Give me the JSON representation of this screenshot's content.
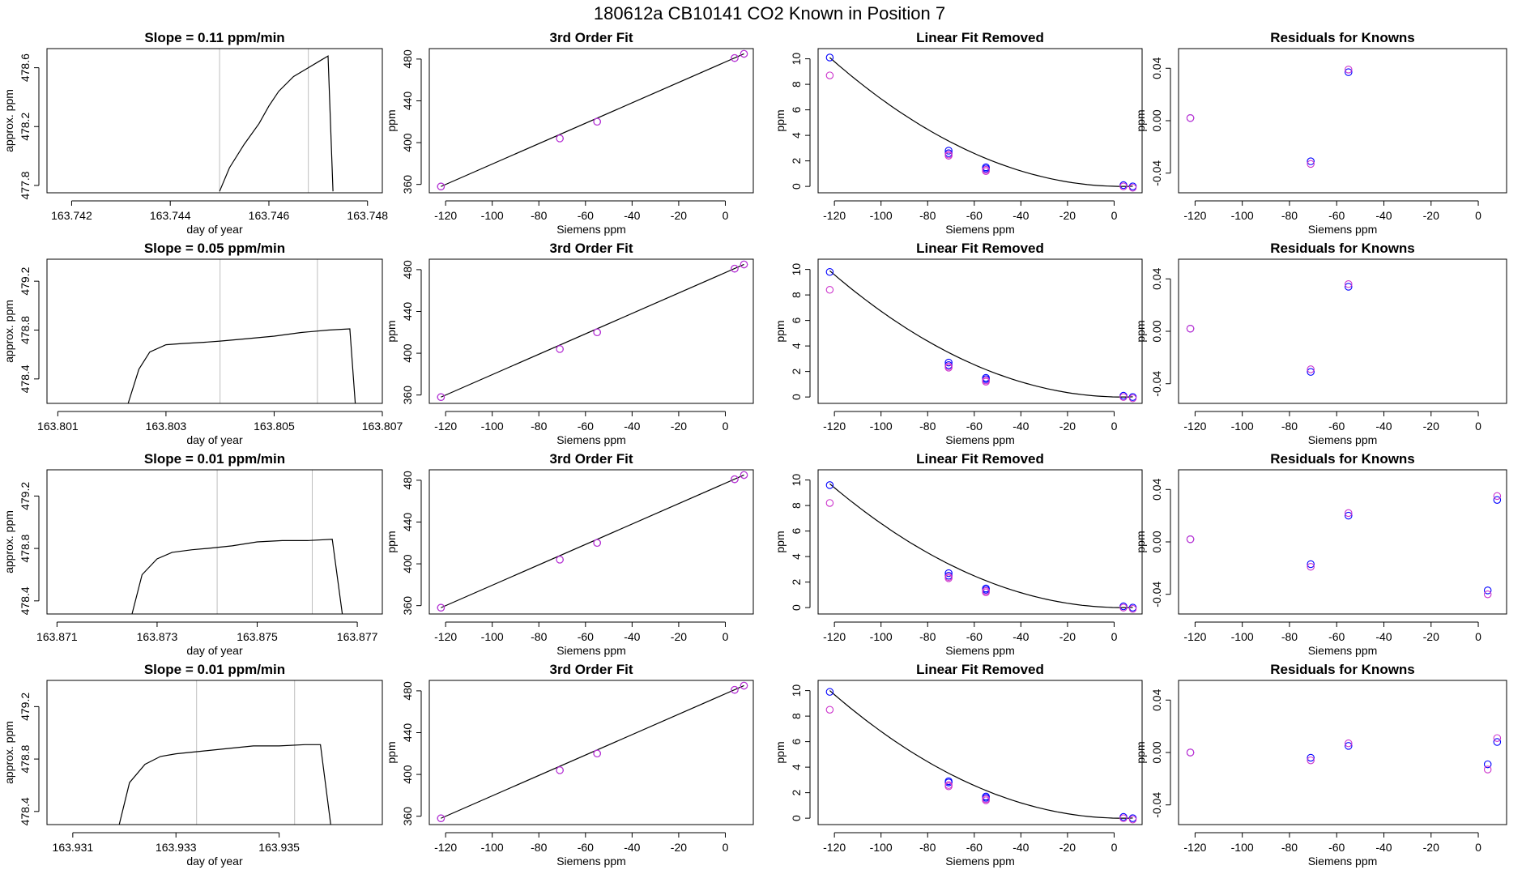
{
  "title": "180612a      CB10141     CO2 Known in Position  7",
  "colors": {
    "line": "#000000",
    "grid": "#bebebe",
    "noise": "#ff0000",
    "point_a": "#0000ff",
    "point_b": "#cc33cc"
  },
  "chart_data": [
    {
      "type": "line",
      "title": "Slope =  0.11  ppm/min",
      "xlabel": "day of year",
      "ylabel": "approx. ppm",
      "xlim": [
        163.7415,
        163.7483
      ],
      "ylim": [
        477.75,
        478.73
      ],
      "xticks": [
        163.742,
        163.744,
        163.746,
        163.748
      ],
      "yticks": [
        477.8,
        478.2,
        478.6
      ],
      "vlines": [
        163.745,
        163.7468
      ],
      "x": [
        163.745,
        163.7452,
        163.7455,
        163.7458,
        163.746,
        163.7462,
        163.7465,
        163.7468,
        163.747,
        163.7472,
        163.7473
      ],
      "y": [
        477.76,
        477.92,
        478.08,
        478.22,
        478.34,
        478.44,
        478.54,
        478.6,
        478.64,
        478.68,
        477.76
      ]
    },
    {
      "type": "line",
      "title": "Slope =  0.05  ppm/min",
      "xlabel": "day of year",
      "ylabel": "approx. ppm",
      "xlim": [
        163.8008,
        163.807
      ],
      "ylim": [
        478.2,
        479.38
      ],
      "xticks": [
        163.801,
        163.803,
        163.805,
        163.807
      ],
      "yticks": [
        478.4,
        478.8,
        479.2
      ],
      "vlines": [
        163.804,
        163.8058
      ],
      "x": [
        163.8023,
        163.8025,
        163.8027,
        163.803,
        163.8033,
        163.8037,
        163.804,
        163.8045,
        163.805,
        163.8055,
        163.806,
        163.8064,
        163.8065
      ],
      "y": [
        478.2,
        478.48,
        478.62,
        478.68,
        478.69,
        478.7,
        478.71,
        478.73,
        478.75,
        478.78,
        478.8,
        478.81,
        478.2
      ]
    },
    {
      "type": "line",
      "title": "Slope =  0.01  ppm/min",
      "xlabel": "day of year",
      "ylabel": "approx. ppm",
      "xlim": [
        163.8708,
        163.8775
      ],
      "ylim": [
        478.3,
        479.4
      ],
      "xticks": [
        163.871,
        163.873,
        163.875,
        163.877
      ],
      "yticks": [
        478.4,
        478.8,
        479.2
      ],
      "vlines": [
        163.8742,
        163.8761
      ],
      "x": [
        163.8725,
        163.8727,
        163.873,
        163.8733,
        163.8737,
        163.874,
        163.8745,
        163.875,
        163.8755,
        163.876,
        163.8765,
        163.8767
      ],
      "y": [
        478.3,
        478.6,
        478.72,
        478.77,
        478.79,
        478.8,
        478.82,
        478.85,
        478.86,
        478.86,
        478.87,
        478.3
      ]
    },
    {
      "type": "line",
      "title": "Slope =  0.01  ppm/min",
      "xlabel": "day of year",
      "ylabel": "approx. ppm",
      "xlim": [
        163.9305,
        163.937
      ],
      "ylim": [
        478.3,
        479.4
      ],
      "xticks": [
        163.931,
        163.933,
        163.935
      ],
      "yticks": [
        478.4,
        478.8,
        479.2
      ],
      "vlines": [
        163.9334,
        163.9353
      ],
      "x": [
        163.9319,
        163.9321,
        163.9324,
        163.9327,
        163.933,
        163.9335,
        163.934,
        163.9345,
        163.935,
        163.9355,
        163.9358,
        163.936
      ],
      "y": [
        478.3,
        478.62,
        478.76,
        478.82,
        478.84,
        478.86,
        478.88,
        478.9,
        478.9,
        478.91,
        478.91,
        478.3
      ]
    },
    {
      "type": "line",
      "title": "3rd Order Fit",
      "xlabel": "Siemens ppm",
      "ylabel": "ppm",
      "xlim": [
        -127,
        12
      ],
      "ylim": [
        352,
        490
      ],
      "xticks": [
        -120,
        -100,
        -80,
        -60,
        -40,
        -20,
        0
      ],
      "yticks": [
        360,
        400,
        440,
        480
      ],
      "line": {
        "x": [
          -122,
          8
        ],
        "y": [
          358,
          485
        ]
      },
      "series": [
        {
          "x": [
            -122,
            -71,
            -55,
            4,
            8
          ],
          "y": [
            358,
            404,
            420,
            481,
            485
          ]
        },
        {
          "x": [
            -122,
            -71,
            -55,
            4,
            8
          ],
          "y": [
            358,
            404,
            420,
            481,
            485
          ]
        }
      ]
    },
    {
      "type": "line",
      "title": "3rd Order Fit",
      "xlabel": "Siemens ppm",
      "ylabel": "ppm",
      "xlim": [
        -127,
        12
      ],
      "ylim": [
        352,
        490
      ],
      "xticks": [
        -120,
        -100,
        -80,
        -60,
        -40,
        -20,
        0
      ],
      "yticks": [
        360,
        400,
        440,
        480
      ],
      "line": {
        "x": [
          -122,
          8
        ],
        "y": [
          358,
          485
        ]
      },
      "series": [
        {
          "x": [
            -122,
            -71,
            -55,
            4,
            8
          ],
          "y": [
            358,
            404,
            420,
            481,
            485
          ]
        },
        {
          "x": [
            -122,
            -71,
            -55,
            4,
            8
          ],
          "y": [
            358,
            404,
            420,
            481,
            485
          ]
        }
      ]
    },
    {
      "type": "line",
      "title": "3rd Order Fit",
      "xlabel": "Siemens ppm",
      "ylabel": "ppm",
      "xlim": [
        -127,
        12
      ],
      "ylim": [
        352,
        490
      ],
      "xticks": [
        -120,
        -100,
        -80,
        -60,
        -40,
        -20,
        0
      ],
      "yticks": [
        360,
        400,
        440,
        480
      ],
      "line": {
        "x": [
          -122,
          8
        ],
        "y": [
          358,
          485
        ]
      },
      "series": [
        {
          "x": [
            -122,
            -71,
            -55,
            4,
            8
          ],
          "y": [
            358,
            404,
            420,
            481,
            485
          ]
        },
        {
          "x": [
            -122,
            -71,
            -55,
            4,
            8
          ],
          "y": [
            358,
            404,
            420,
            481,
            485
          ]
        }
      ]
    },
    {
      "type": "line",
      "title": "3rd Order Fit",
      "xlabel": "Siemens ppm",
      "ylabel": "ppm",
      "xlim": [
        -127,
        12
      ],
      "ylim": [
        352,
        490
      ],
      "xticks": [
        -120,
        -100,
        -80,
        -60,
        -40,
        -20,
        0
      ],
      "yticks": [
        360,
        400,
        440,
        480
      ],
      "line": {
        "x": [
          -122,
          8
        ],
        "y": [
          358,
          485
        ]
      },
      "series": [
        {
          "x": [
            -122,
            -71,
            -55,
            4,
            8
          ],
          "y": [
            358,
            404,
            420,
            481,
            485
          ]
        },
        {
          "x": [
            -122,
            -71,
            -55,
            4,
            8
          ],
          "y": [
            358,
            404,
            420,
            481,
            485
          ]
        }
      ]
    },
    {
      "type": "line",
      "title": "Linear Fit Removed",
      "xlabel": "Siemens ppm",
      "ylabel": "ppm",
      "xlim": [
        -127,
        12
      ],
      "ylim": [
        -0.5,
        10.8
      ],
      "xticks": [
        -120,
        -100,
        -80,
        -60,
        -40,
        -20,
        0
      ],
      "yticks": [
        0,
        2,
        4,
        6,
        8,
        10
      ],
      "curve": {
        "x0": 3.5,
        "a": 0.000641,
        "xfrom": -122,
        "xto": 8
      },
      "series": [
        {
          "x": [
            -122,
            -71,
            -71,
            -55,
            -55,
            4,
            8
          ],
          "y": [
            10.1,
            2.8,
            2.6,
            1.5,
            1.4,
            0.1,
            0.0
          ]
        },
        {
          "x": [
            -122,
            -71,
            -71,
            -55,
            -55,
            4,
            8
          ],
          "y": [
            8.7,
            2.5,
            2.4,
            1.3,
            1.2,
            0.0,
            -0.1
          ]
        }
      ]
    },
    {
      "type": "line",
      "title": "Linear Fit Removed",
      "xlabel": "Siemens ppm",
      "ylabel": "ppm",
      "xlim": [
        -127,
        12
      ],
      "ylim": [
        -0.5,
        10.8
      ],
      "xticks": [
        -120,
        -100,
        -80,
        -60,
        -40,
        -20,
        0
      ],
      "yticks": [
        0,
        2,
        4,
        6,
        8,
        10
      ],
      "curve": {
        "x0": 3.5,
        "a": 0.000628,
        "xfrom": -122,
        "xto": 8
      },
      "series": [
        {
          "x": [
            -122,
            -71,
            -71,
            -55,
            -55,
            4,
            8
          ],
          "y": [
            9.8,
            2.7,
            2.5,
            1.5,
            1.4,
            0.1,
            0.0
          ]
        },
        {
          "x": [
            -122,
            -71,
            -71,
            -55,
            -55,
            4,
            8
          ],
          "y": [
            8.4,
            2.4,
            2.3,
            1.3,
            1.2,
            0.0,
            -0.1
          ]
        }
      ]
    },
    {
      "type": "line",
      "title": "Linear Fit Removed",
      "xlabel": "Siemens ppm",
      "ylabel": "ppm",
      "xlim": [
        -127,
        12
      ],
      "ylim": [
        -0.5,
        10.8
      ],
      "xticks": [
        -120,
        -100,
        -80,
        -60,
        -40,
        -20,
        0
      ],
      "yticks": [
        0,
        2,
        4,
        6,
        8,
        10
      ],
      "curve": {
        "x0": 3.5,
        "a": 0.000616,
        "xfrom": -122,
        "xto": 8
      },
      "series": [
        {
          "x": [
            -122,
            -71,
            -71,
            -55,
            -55,
            4,
            8
          ],
          "y": [
            9.6,
            2.7,
            2.5,
            1.5,
            1.4,
            0.1,
            0.0
          ]
        },
        {
          "x": [
            -122,
            -71,
            -71,
            -55,
            -55,
            4,
            8
          ],
          "y": [
            8.2,
            2.4,
            2.3,
            1.3,
            1.2,
            0.0,
            -0.1
          ]
        }
      ]
    },
    {
      "type": "line",
      "title": "Linear Fit Removed",
      "xlabel": "Siemens ppm",
      "ylabel": "ppm",
      "xlim": [
        -127,
        12
      ],
      "ylim": [
        -0.5,
        10.8
      ],
      "xticks": [
        -120,
        -100,
        -80,
        -60,
        -40,
        -20,
        0
      ],
      "yticks": [
        0,
        2,
        4,
        6,
        8,
        10
      ],
      "curve": {
        "x0": 3.5,
        "a": 0.000635,
        "xfrom": -122,
        "xto": 8
      },
      "series": [
        {
          "x": [
            -122,
            -71,
            -71,
            -55,
            -55,
            4,
            8
          ],
          "y": [
            9.9,
            2.9,
            2.8,
            1.7,
            1.6,
            0.1,
            0.0
          ]
        },
        {
          "x": [
            -122,
            -71,
            -71,
            -55,
            -55,
            4,
            8
          ],
          "y": [
            8.5,
            2.6,
            2.5,
            1.5,
            1.4,
            0.0,
            -0.1
          ]
        }
      ]
    },
    {
      "type": "scatter",
      "title": "Residuals for Knowns",
      "xlabel": "Siemens ppm",
      "ylabel": "ppm",
      "xlim": [
        -127,
        12
      ],
      "ylim": [
        -0.055,
        0.055
      ],
      "xticks": [
        -120,
        -100,
        -80,
        -60,
        -40,
        -20,
        0
      ],
      "yticks": [
        -0.04,
        0.0,
        0.04
      ],
      "series": [
        {
          "x": [
            -122,
            -71,
            -55
          ],
          "y": [
            0.002,
            -0.031,
            0.037
          ]
        },
        {
          "x": [
            -122,
            -71,
            -55
          ],
          "y": [
            0.002,
            -0.033,
            0.039
          ]
        }
      ]
    },
    {
      "type": "scatter",
      "title": "Residuals for Knowns",
      "xlabel": "Siemens ppm",
      "ylabel": "ppm",
      "xlim": [
        -127,
        12
      ],
      "ylim": [
        -0.055,
        0.055
      ],
      "xticks": [
        -120,
        -100,
        -80,
        -60,
        -40,
        -20,
        0
      ],
      "yticks": [
        -0.04,
        0.0,
        0.04
      ],
      "series": [
        {
          "x": [
            -122,
            -71,
            -55
          ],
          "y": [
            0.002,
            -0.031,
            0.034
          ]
        },
        {
          "x": [
            -122,
            -71,
            -55
          ],
          "y": [
            0.002,
            -0.029,
            0.036
          ]
        }
      ]
    },
    {
      "type": "scatter",
      "title": "Residuals for Knowns",
      "xlabel": "Siemens ppm",
      "ylabel": "ppm",
      "xlim": [
        -127,
        12
      ],
      "ylim": [
        -0.055,
        0.055
      ],
      "xticks": [
        -120,
        -100,
        -80,
        -60,
        -40,
        -20,
        0
      ],
      "yticks": [
        -0.04,
        0.0,
        0.04
      ],
      "series": [
        {
          "x": [
            -122,
            -71,
            -55,
            4,
            8
          ],
          "y": [
            0.002,
            -0.017,
            0.02,
            -0.037,
            0.032
          ]
        },
        {
          "x": [
            -122,
            -71,
            -55,
            4,
            8
          ],
          "y": [
            0.002,
            -0.019,
            0.022,
            -0.04,
            0.035
          ]
        }
      ]
    },
    {
      "type": "scatter",
      "title": "Residuals for Knowns",
      "xlabel": "Siemens ppm",
      "ylabel": "ppm",
      "xlim": [
        -127,
        12
      ],
      "ylim": [
        -0.055,
        0.055
      ],
      "xticks": [
        -120,
        -100,
        -80,
        -60,
        -40,
        -20,
        0
      ],
      "yticks": [
        -0.04,
        0.0,
        0.04
      ],
      "series": [
        {
          "x": [
            -122,
            -71,
            -55,
            4,
            8
          ],
          "y": [
            0.0,
            -0.004,
            0.005,
            -0.009,
            0.008
          ]
        },
        {
          "x": [
            -122,
            -71,
            -55,
            4,
            8
          ],
          "y": [
            0.0,
            -0.006,
            0.007,
            -0.013,
            0.011
          ]
        }
      ]
    }
  ]
}
